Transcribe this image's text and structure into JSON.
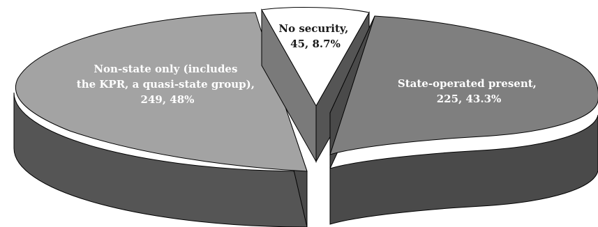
{
  "chart_data": {
    "type": "pie",
    "style": "3d-exploded",
    "title": "",
    "slices": [
      {
        "label_lines": [
          "No security,",
          "45, 8.7%"
        ],
        "count": 45,
        "percent": 8.7,
        "color": "#ffffff",
        "side_color": "#7a7a7a",
        "text_color": "#1a1a1a"
      },
      {
        "label_lines": [
          "State-operated present,",
          "225, 43.3%"
        ],
        "count": 225,
        "percent": 43.3,
        "color": "#7f7f7f",
        "side_color": "#4a4a4a",
        "text_color": "#ffffff"
      },
      {
        "label_lines": [
          "Non-state only (includes",
          "the KPR, a quasi-state group),",
          "249, 48%"
        ],
        "count": 249,
        "percent": 48,
        "color": "#a3a3a3",
        "side_color": "#555555",
        "text_color": "#ffffff"
      }
    ]
  }
}
